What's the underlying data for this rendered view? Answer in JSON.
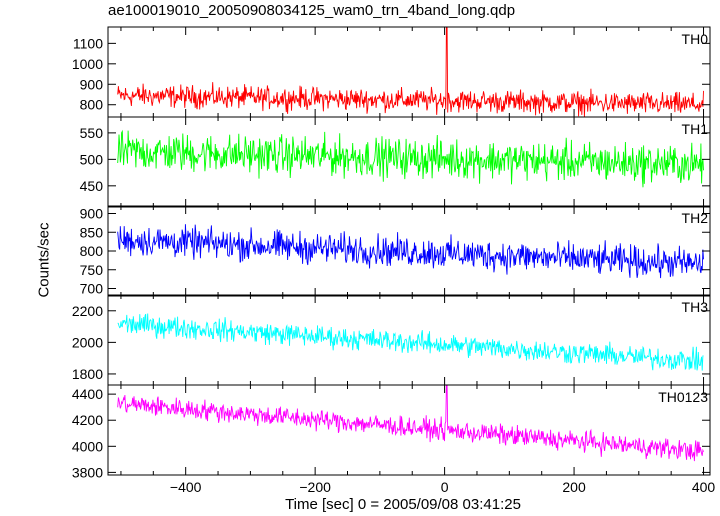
{
  "title": "ae100019010_20050908034125_wam0_trn_4band_long.qdp",
  "ylabel": "Counts/sec",
  "xlabel": "Time [sec] 0 = 2005/09/08 03:41:25",
  "chart_data": {
    "type": "line",
    "title": "ae100019010_20050908034125_wam0_trn_4band_long.qdp",
    "xlabel": "Time [sec] 0 = 2005/09/08 03:41:25",
    "ylabel": "Counts/sec",
    "xlim": [
      -520,
      410
    ],
    "x_ticks": [
      -400,
      -200,
      0,
      200,
      400
    ],
    "x_range_data": [
      -505,
      400
    ],
    "grid": false,
    "panels": [
      {
        "name": "TH0",
        "color": "#ff0000",
        "ylim": [
          740,
          1180
        ],
        "y_ticks": [
          800,
          900,
          1000,
          1100
        ],
        "trend": {
          "start": 845,
          "end": 800
        },
        "noise_amplitude": 60,
        "spike": {
          "x": 3,
          "value": 1180
        }
      },
      {
        "name": "TH1",
        "color": "#00ff00",
        "ylim": [
          410,
          580
        ],
        "y_ticks": [
          450,
          500,
          550
        ],
        "trend": {
          "start": 515,
          "end": 490
        },
        "noise_amplitude": 40
      },
      {
        "name": "TH2",
        "color": "#0000ff",
        "ylim": [
          680,
          920
        ],
        "y_ticks": [
          700,
          750,
          800,
          850,
          900
        ],
        "trend": {
          "start": 830,
          "end": 765
        },
        "noise_amplitude": 45
      },
      {
        "name": "TH3",
        "color": "#00ffff",
        "ylim": [
          1730,
          2300
        ],
        "y_ticks": [
          1800,
          2000,
          2200
        ],
        "trend": {
          "start": 2120,
          "end": 1880
        },
        "noise_amplitude": 75
      },
      {
        "name": "TH0123",
        "color": "#ff00ff",
        "ylim": [
          3780,
          4470
        ],
        "y_ticks": [
          3800,
          4000,
          4200,
          4400
        ],
        "trend": {
          "start": 4330,
          "end": 3960
        },
        "noise_amplitude": 85,
        "spike": {
          "x": 3,
          "value": 4470
        }
      }
    ]
  }
}
